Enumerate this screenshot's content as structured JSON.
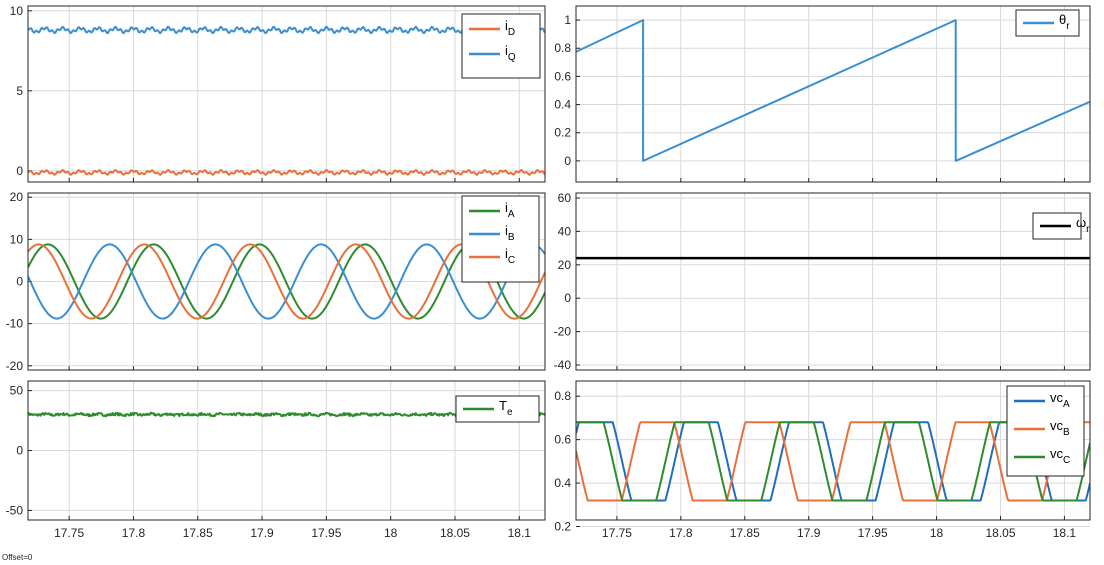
{
  "footer": {
    "offset_label": "Offset=0"
  },
  "x_axis": {
    "range": [
      17.718,
      18.12
    ],
    "ticks": [
      "17.75",
      "17.8",
      "17.85",
      "17.9",
      "17.95",
      "18",
      "18.05",
      "18.1"
    ]
  },
  "chart_data": [
    {
      "type": "line",
      "panel": "top-left",
      "grid": true,
      "legend_position": "top-right",
      "ylim": [
        -0.7,
        10.3
      ],
      "yticks": [
        "0",
        "5",
        "10"
      ],
      "series": [
        {
          "name": "iD",
          "label_main": "i",
          "label_sub": "D",
          "color": "#e8703a",
          "mean": -0.1,
          "ripple": 0.15
        },
        {
          "name": "iQ",
          "label_main": "i",
          "label_sub": "Q",
          "color": "#3a8fd1",
          "mean": 8.8,
          "ripple": 0.2
        }
      ]
    },
    {
      "type": "line",
      "panel": "top-right",
      "grid": true,
      "legend_position": "top-right",
      "ylim": [
        -0.15,
        1.1
      ],
      "yticks": [
        "0",
        "0.2",
        "0.4",
        "0.6",
        "0.8",
        "1"
      ],
      "series": [
        {
          "name": "θr",
          "label_main": "θ",
          "label_sub": "r",
          "color": "#3a8fd1",
          "x": [
            17.718,
            17.7705,
            17.7705,
            18.015,
            18.015,
            18.12
          ],
          "y": [
            0.775,
            1.0,
            0.0,
            1.0,
            0.0,
            0.42
          ]
        }
      ]
    },
    {
      "type": "line",
      "panel": "middle-left",
      "grid": true,
      "legend_position": "top-right",
      "ylim": [
        -21,
        21
      ],
      "yticks": [
        "-20",
        "-10",
        "0",
        "10",
        "20"
      ],
      "series": [
        {
          "name": "iA",
          "label_main": "i",
          "label_sub": "A",
          "color": "#2e8b2e",
          "amplitude": 8.8,
          "period": 0.0822,
          "peak_at": 17.7335
        },
        {
          "name": "iB",
          "label_main": "i",
          "label_sub": "B",
          "color": "#3a8fd1",
          "amplitude": 8.8,
          "period": 0.0822,
          "peak_at": 17.7815
        },
        {
          "name": "iC",
          "label_main": "i",
          "label_sub": "C",
          "color": "#e8703a",
          "amplitude": 8.8,
          "period": 0.0822,
          "peak_at": 17.8085
        }
      ]
    },
    {
      "type": "line",
      "panel": "middle-right",
      "grid": true,
      "legend_position": "top-right",
      "ylim": [
        -43,
        63
      ],
      "yticks": [
        "-40",
        "-20",
        "0",
        "20",
        "40",
        "60"
      ],
      "series": [
        {
          "name": "ωr",
          "label_main": "ω",
          "label_sub": "r",
          "color": "#000000",
          "value": 24
        }
      ]
    },
    {
      "type": "line",
      "panel": "bottom-left",
      "grid": true,
      "legend_position": "top-right",
      "ylim": [
        -58,
        58
      ],
      "yticks": [
        "-50",
        "0",
        "50"
      ],
      "series": [
        {
          "name": "Te",
          "label_main": "T",
          "label_sub": "e",
          "color": "#2e8b2e",
          "mean": 30,
          "ripple": 1.5
        }
      ]
    },
    {
      "type": "line",
      "panel": "bottom-right",
      "grid": true,
      "legend_position": "top-right",
      "ylim": [
        0.23,
        0.87
      ],
      "yticks": [
        "0.2",
        "0.4",
        "0.6",
        "0.8"
      ],
      "series": [
        {
          "name": "vcA",
          "label_main": "vc",
          "label_sub": "A",
          "color": "#1f6fbf",
          "low": 0.32,
          "high": 0.68,
          "period": 0.0822,
          "peak_at": 17.7335
        },
        {
          "name": "vcB",
          "label_main": "vc",
          "label_sub": "B",
          "color": "#e8703a",
          "low": 0.32,
          "high": 0.68,
          "period": 0.0822,
          "peak_at": 17.7815
        },
        {
          "name": "vcC",
          "label_main": "vc",
          "label_sub": "C",
          "color": "#2e8b2e",
          "low": 0.32,
          "high": 0.68,
          "period": 0.0822,
          "peak_at": 17.8085
        }
      ]
    }
  ]
}
